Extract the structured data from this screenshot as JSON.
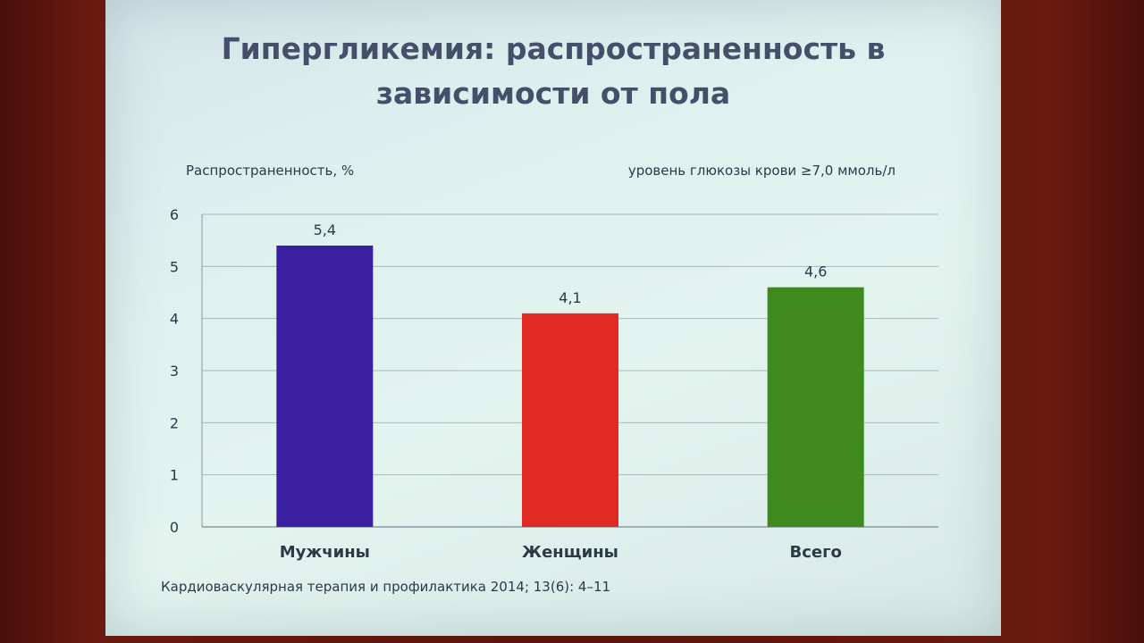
{
  "slide": {
    "title_line1": "Гипергликемия: распространенность в",
    "title_line2": "зависимости от пола",
    "ylabel": "Распространенность, %",
    "note": "уровень глюкозы крови ≥7,0 ммоль/л",
    "source": "Кардиоваскулярная терапия и профилактика 2014; 13(6): 4–11"
  },
  "chart_data": {
    "type": "bar",
    "title": "Гипергликемия: распространенность в зависимости от пола",
    "ylabel": "Распространенность, %",
    "xlabel": "",
    "annotation": "уровень глюкозы крови ≥7,0 ммоль/л",
    "categories": [
      "Мужчины",
      "Женщины",
      "Всего"
    ],
    "values": [
      5.4,
      4.1,
      4.6
    ],
    "value_labels": [
      "5,4",
      "4,1",
      "4,6"
    ],
    "colors": [
      "#3a1fa0",
      "#e02a24",
      "#3f8a1e"
    ],
    "ylim": [
      0,
      6
    ],
    "yticks": [
      0,
      1,
      2,
      3,
      4,
      5,
      6
    ],
    "grid": true,
    "legend": "none"
  }
}
